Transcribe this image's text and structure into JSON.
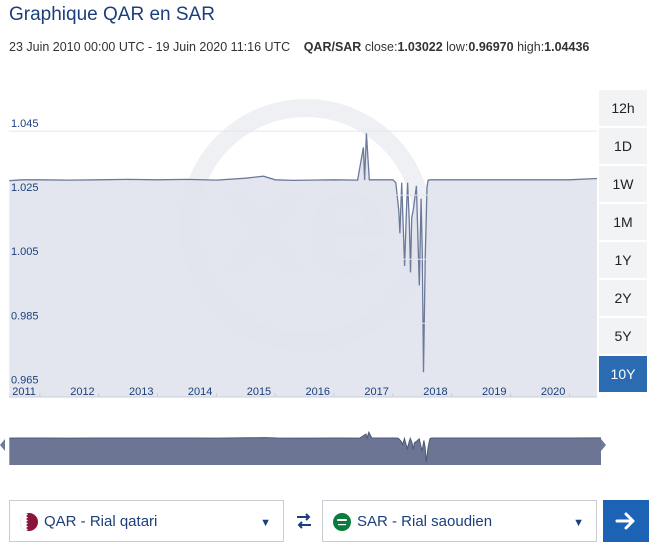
{
  "header": {
    "title": "Graphique QAR en SAR",
    "date_range": "23 Juin 2010 00:00 UTC - 19 Juin 2020 11:16 UTC",
    "pair": "QAR/SAR",
    "close_label": "close:",
    "close_value": "1.03022",
    "low_label": "low:",
    "low_value": "0.96970",
    "high_label": "high:",
    "high_value": "1.04436"
  },
  "range_buttons": [
    "12h",
    "1D",
    "1W",
    "1M",
    "1Y",
    "2Y",
    "5Y",
    "10Y"
  ],
  "active_range": "10Y",
  "chart_data": {
    "type": "area",
    "x_ticks": [
      "2011",
      "2012",
      "2013",
      "2014",
      "2015",
      "2016",
      "2017",
      "2018",
      "2019",
      "2020"
    ],
    "y_ticks": [
      "1.045",
      "1.025",
      "1.005",
      "0.985",
      "0.965"
    ],
    "ylim": [
      0.962,
      1.0625
    ],
    "xlim": [
      2010.475,
      2020.47
    ],
    "x": [
      2010.48,
      2010.7,
      2011.0,
      2011.5,
      2012.0,
      2012.5,
      2013.0,
      2013.5,
      2014.0,
      2014.5,
      2014.8,
      2015.0,
      2015.3,
      2015.6,
      2016.0,
      2016.4,
      2016.5,
      2016.52,
      2016.55,
      2016.6,
      2017.0,
      2017.05,
      2017.1,
      2017.12,
      2017.15,
      2017.2,
      2017.23,
      2017.25,
      2017.28,
      2017.3,
      2017.32,
      2017.35,
      2017.4,
      2017.45,
      2017.48,
      2017.5,
      2017.52,
      2017.55,
      2017.58,
      2017.6,
      2017.65,
      2018.0,
      2019.0,
      2020.0,
      2020.47
    ],
    "y": [
      1.0295,
      1.0298,
      1.0298,
      1.0297,
      1.0298,
      1.0299,
      1.0298,
      1.0299,
      1.0297,
      1.0303,
      1.0309,
      1.0298,
      1.0296,
      1.0297,
      1.0298,
      1.0297,
      1.0399,
      1.0297,
      1.0443,
      1.0298,
      1.0298,
      1.0289,
      1.0205,
      1.0131,
      1.0289,
      1.0029,
      1.0199,
      1.0289,
      1.0169,
      1.0009,
      1.0179,
      1.0209,
      1.0279,
      0.9968,
      1.0239,
      1.0064,
      0.9697,
      1.0049,
      1.0275,
      1.0297,
      1.0298,
      1.0298,
      1.0298,
      1.0298,
      1.0302
    ],
    "colors": {
      "line": "#6b7a9a",
      "fill": "#dfe2ec"
    }
  },
  "currency_from": {
    "label": "QAR - Rial qatari",
    "flag_color": "#8a1538"
  },
  "currency_to": {
    "label": "SAR - Rial saoudien",
    "flag_color": "#0a7d3e"
  },
  "watermark_text": "xe"
}
